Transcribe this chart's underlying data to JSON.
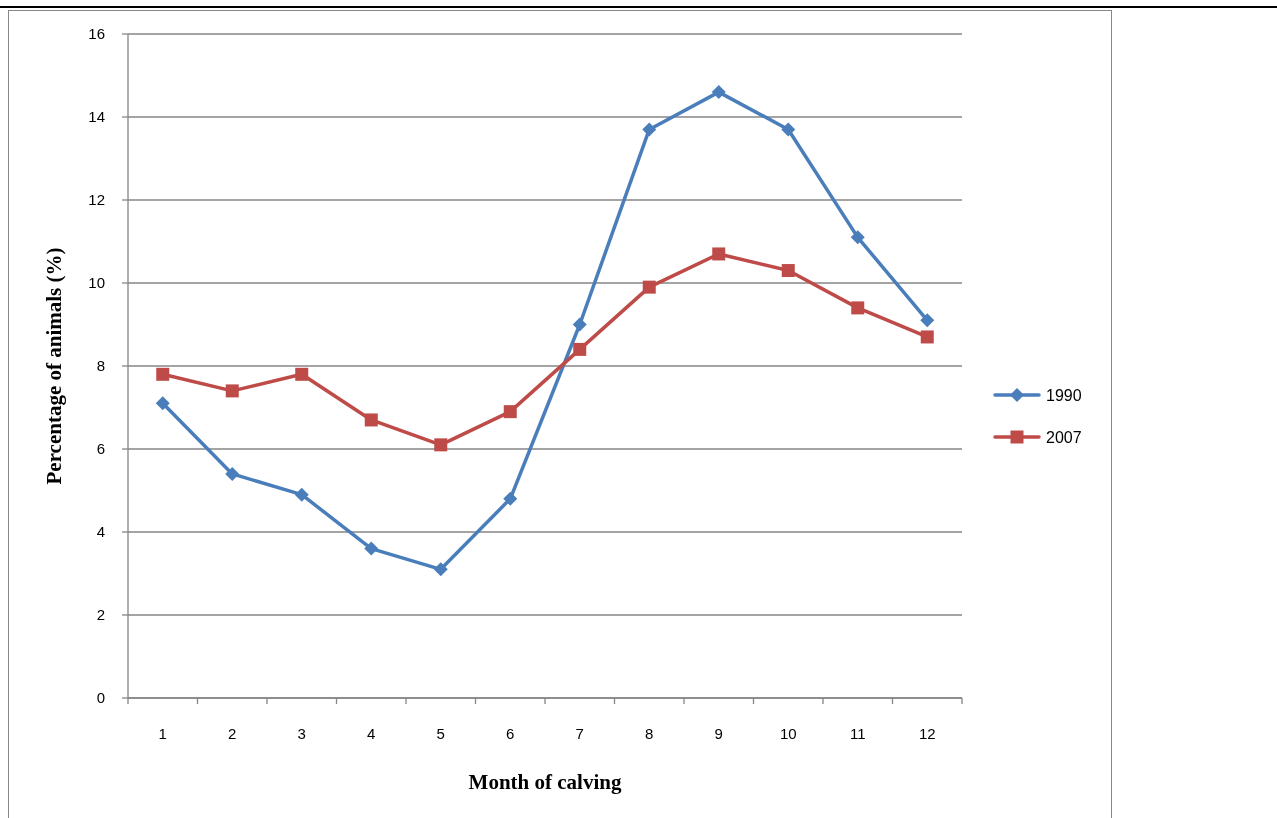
{
  "chart_data": {
    "type": "line",
    "xlabel": "Month of calving",
    "ylabel": "Percentage of animals (%)",
    "categories": [
      "1",
      "2",
      "3",
      "4",
      "5",
      "6",
      "7",
      "8",
      "9",
      "10",
      "11",
      "12"
    ],
    "series": [
      {
        "name": "1990",
        "color": "#4a7ebb",
        "marker": "diamond",
        "values": [
          7.1,
          5.4,
          4.9,
          3.6,
          3.1,
          4.8,
          9.0,
          13.7,
          14.6,
          13.7,
          11.1,
          9.1
        ]
      },
      {
        "name": "2007",
        "color": "#be4b48",
        "marker": "square",
        "values": [
          7.8,
          7.4,
          7.8,
          6.7,
          6.1,
          6.9,
          8.4,
          9.9,
          10.7,
          10.3,
          9.4,
          8.7
        ]
      }
    ],
    "ylim": [
      0,
      16
    ],
    "yticks": [
      0,
      2,
      4,
      6,
      8,
      10,
      12,
      14,
      16
    ],
    "grid": "y",
    "legend": "right",
    "line_style": "solid"
  }
}
